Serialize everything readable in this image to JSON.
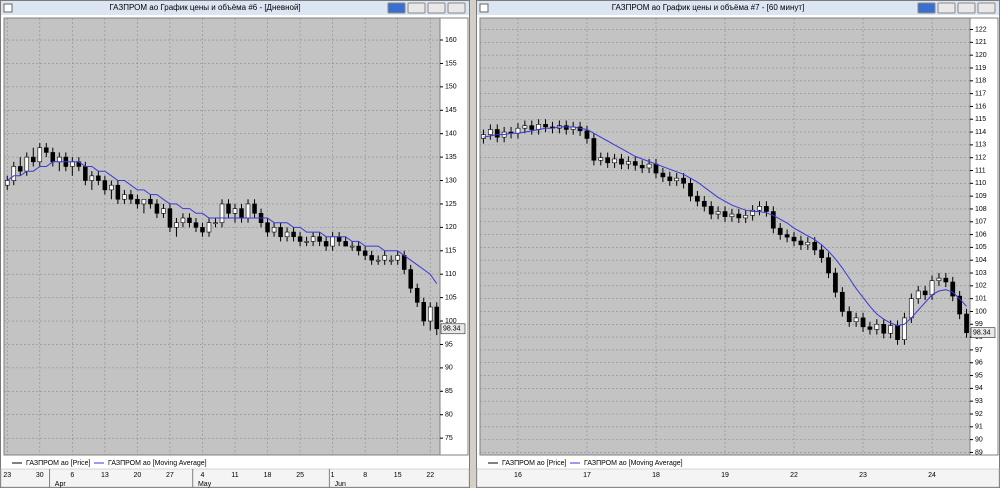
{
  "chart_data": [
    {
      "type": "candlestick",
      "title": "ГАЗПРОМ ао График цены и объёма #6 - [Дневной]",
      "categories": [
        "23",
        null,
        null,
        null,
        null,
        "30",
        null,
        null,
        null,
        null,
        "6",
        null,
        null,
        null,
        null,
        "13",
        null,
        null,
        null,
        null,
        "20",
        null,
        null,
        null,
        null,
        "27",
        null,
        null,
        null,
        null,
        "4",
        null,
        null,
        null,
        null,
        "11",
        null,
        null,
        null,
        null,
        "18",
        null,
        null,
        null,
        null,
        "25",
        null,
        null,
        null,
        null,
        "1",
        null,
        null,
        null,
        null,
        "8",
        null,
        null,
        null,
        null,
        "15",
        null,
        null,
        null,
        null,
        "22",
        null
      ],
      "months": [
        null,
        null,
        null,
        null,
        null,
        null,
        null,
        "Apr",
        null,
        null,
        null,
        null,
        null,
        null,
        null,
        null,
        null,
        null,
        null,
        null,
        null,
        null,
        null,
        null,
        null,
        null,
        null,
        null,
        null,
        "May",
        null,
        null,
        null,
        null,
        null,
        null,
        null,
        null,
        null,
        null,
        null,
        null,
        null,
        null,
        null,
        null,
        null,
        null,
        null,
        null,
        "Jun",
        null,
        null,
        null,
        null,
        null,
        null,
        null,
        null,
        null,
        null,
        null,
        null,
        null,
        null,
        null,
        null
      ],
      "series": [
        {
          "name": "ГАЗПРОМ ао [Price]",
          "color": "#000000",
          "open": [
            129,
            130,
            133,
            132,
            135,
            134,
            137,
            136,
            134,
            135,
            133,
            134,
            133,
            130,
            131,
            130,
            128,
            129,
            126,
            127,
            126,
            125,
            126,
            125,
            123,
            124,
            120,
            121,
            122,
            121,
            120,
            119,
            121,
            121,
            125,
            123,
            124,
            122,
            125,
            123,
            121,
            119,
            120,
            118,
            119,
            118,
            117,
            117,
            118,
            117,
            116,
            118,
            117,
            116,
            116,
            115,
            114,
            113,
            113,
            113,
            113,
            114,
            111,
            107,
            104,
            100,
            103
          ],
          "high": [
            131,
            134,
            135,
            136,
            137,
            138,
            138,
            137,
            136,
            136,
            135,
            135,
            134,
            132,
            132,
            131,
            130,
            130,
            128,
            128,
            127,
            126,
            127,
            126,
            125,
            125,
            122,
            123,
            123,
            122,
            121,
            122,
            122,
            126,
            126,
            125,
            125,
            126,
            126,
            124,
            122,
            121,
            121,
            120,
            120,
            119,
            118,
            119,
            119,
            118,
            119,
            119,
            118,
            117,
            117,
            116,
            115,
            114,
            115,
            114,
            115,
            115,
            112,
            108,
            105,
            104,
            104
          ],
          "low": [
            128,
            129,
            131,
            131,
            133,
            133,
            135,
            133,
            132,
            132,
            131,
            132,
            129,
            128,
            129,
            127,
            126,
            125,
            125,
            125,
            124,
            123,
            124,
            122,
            122,
            119,
            118,
            120,
            120,
            119,
            118,
            118,
            120,
            120,
            122,
            121,
            121,
            121,
            122,
            120,
            118,
            118,
            117,
            117,
            117,
            116,
            116,
            116,
            116,
            115,
            115,
            116,
            116,
            115,
            114,
            113,
            112,
            112,
            112,
            112,
            112,
            110,
            106,
            103,
            99,
            98,
            97
          ],
          "close": [
            130,
            133,
            132,
            135,
            134,
            137,
            136,
            134,
            135,
            133,
            134,
            133,
            130,
            131,
            130,
            128,
            129,
            126,
            127,
            126,
            125,
            126,
            125,
            123,
            124,
            120,
            121,
            122,
            121,
            120,
            119,
            121,
            121,
            125,
            123,
            124,
            122,
            125,
            123,
            121,
            119,
            120,
            118,
            119,
            118,
            117,
            117,
            118,
            117,
            116,
            118,
            117,
            116,
            116,
            115,
            114,
            113,
            113,
            114,
            113,
            114,
            111,
            107,
            104,
            100,
            103,
            98.34
          ]
        },
        {
          "name": "ГАЗПРОМ ао [Moving Average]",
          "color": "#3a3ad8",
          "values": [
            130,
            131,
            131,
            132,
            132,
            133,
            133,
            134,
            134,
            134,
            134,
            134,
            133,
            133,
            132,
            132,
            131,
            130,
            130,
            129,
            128,
            128,
            127,
            127,
            126,
            125,
            125,
            124,
            124,
            123,
            123,
            122,
            122,
            122,
            122,
            122,
            122,
            122,
            122,
            122,
            122,
            121,
            121,
            121,
            120,
            120,
            119,
            119,
            119,
            118,
            118,
            118,
            118,
            117,
            117,
            116,
            116,
            116,
            115,
            115,
            115,
            114,
            113,
            112,
            111,
            110,
            108
          ]
        }
      ],
      "ylim": [
        71.4,
        164.7
      ],
      "yticks": [
        75,
        80,
        85,
        90,
        95,
        100,
        105,
        110,
        115,
        120,
        125,
        130,
        135,
        140,
        145,
        150,
        155,
        160
      ],
      "grid": true
    },
    {
      "type": "candlestick",
      "title": "ГАЗПРОМ ао График цены и объёма #7 - [60 минут]",
      "categories": [
        null,
        null,
        null,
        null,
        null,
        "16",
        null,
        null,
        null,
        null,
        null,
        null,
        null,
        null,
        null,
        "17",
        null,
        null,
        null,
        null,
        null,
        null,
        null,
        null,
        null,
        "18",
        null,
        null,
        null,
        null,
        null,
        null,
        null,
        null,
        null,
        "19",
        null,
        null,
        null,
        null,
        null,
        null,
        null,
        null,
        null,
        "22",
        null,
        null,
        null,
        null,
        null,
        null,
        null,
        null,
        null,
        "23",
        null,
        null,
        null,
        null,
        null,
        null,
        null,
        null,
        null,
        "24",
        null,
        null,
        null,
        null,
        null
      ],
      "series": [
        {
          "name": "ГАЗПРОМ ао [Price]",
          "color": "#000000",
          "open": [
            113.5,
            113.8,
            114.2,
            113.6,
            114,
            113.9,
            114.3,
            114.5,
            114.2,
            114.6,
            114.4,
            114.3,
            114.5,
            114.2,
            114.4,
            114.1,
            113.5,
            111.8,
            112,
            111.6,
            111.9,
            111.5,
            111.7,
            111.4,
            111.2,
            111.5,
            110.8,
            110.5,
            110.2,
            110.4,
            110,
            109,
            108.6,
            108.2,
            107.6,
            107.8,
            107.4,
            107.6,
            107.3,
            107.5,
            107.9,
            108.2,
            107.8,
            106.5,
            106,
            105.8,
            105.5,
            105.2,
            105.4,
            104.8,
            104.2,
            103,
            101.5,
            100,
            99.2,
            99.5,
            98.8,
            98.6,
            99,
            98.3,
            98.9,
            97.8,
            99.5,
            101,
            101.6,
            101.3,
            102.4,
            102.6,
            102.3,
            101.2,
            99.8
          ],
          "high": [
            114.2,
            114.6,
            114.6,
            114.4,
            114.4,
            114.7,
            114.9,
            114.9,
            115,
            115,
            114.8,
            114.9,
            114.9,
            114.8,
            114.8,
            114.5,
            113.9,
            112.4,
            112.4,
            112.3,
            112.3,
            112.1,
            112.1,
            111.8,
            111.9,
            111.9,
            111.2,
            110.9,
            110.8,
            110.8,
            110.4,
            109.4,
            109,
            108.6,
            108.2,
            108.2,
            108,
            108,
            107.9,
            108.3,
            108.6,
            108.6,
            108.2,
            106.9,
            106.4,
            106.2,
            105.9,
            105.8,
            105.8,
            105.2,
            104.6,
            103.4,
            101.9,
            100.4,
            99.9,
            99.9,
            99.2,
            99.4,
            99.4,
            99.3,
            99.3,
            99.9,
            101.4,
            102,
            102,
            102.8,
            103,
            103,
            102.7,
            101.6,
            100.2
          ],
          "low": [
            113.1,
            113.4,
            113.2,
            113.2,
            113.5,
            113.5,
            113.9,
            113.8,
            113.8,
            114,
            113.9,
            113.9,
            113.8,
            113.8,
            113.7,
            113.1,
            111.4,
            111.4,
            111.2,
            111.2,
            111.1,
            111.1,
            111,
            110.8,
            110.8,
            110.4,
            110.1,
            109.8,
            109.8,
            109.6,
            108.6,
            108.2,
            107.8,
            107.2,
            107.2,
            107,
            107,
            106.9,
            106.9,
            107.1,
            107.5,
            107.4,
            106.1,
            105.6,
            105.4,
            105.1,
            104.8,
            104.8,
            104.4,
            103.8,
            102.6,
            101.1,
            99.6,
            98.8,
            98.8,
            98.4,
            98.2,
            98.2,
            97.9,
            97.9,
            97.4,
            97.4,
            99.1,
            100.6,
            100.9,
            100.9,
            102,
            101.9,
            100.8,
            99.4,
            97.94
          ],
          "close": [
            113.8,
            114.2,
            113.6,
            114,
            113.9,
            114.3,
            114.5,
            114.2,
            114.6,
            114.4,
            114.3,
            114.5,
            114.2,
            114.4,
            114.1,
            113.5,
            111.8,
            112,
            111.6,
            111.9,
            111.5,
            111.7,
            111.4,
            111.2,
            111.5,
            110.8,
            110.5,
            110.2,
            110.4,
            110,
            109,
            108.6,
            108.2,
            107.6,
            107.8,
            107.4,
            107.6,
            107.3,
            107.5,
            107.9,
            108.2,
            107.8,
            106.5,
            106,
            105.8,
            105.5,
            105.2,
            105.4,
            104.8,
            104.2,
            103,
            101.5,
            100,
            99.2,
            99.5,
            98.8,
            98.6,
            99,
            98.3,
            98.9,
            97.8,
            99.5,
            101,
            101.6,
            101.3,
            102.4,
            102.6,
            102.3,
            101.2,
            99.8,
            98.34
          ]
        },
        {
          "name": "ГАЗПРОМ ао [Moving Average]",
          "color": "#3a3ad8",
          "values": [
            113.6,
            113.7,
            113.8,
            113.8,
            113.9,
            113.9,
            114,
            114.1,
            114.2,
            114.3,
            114.3,
            114.4,
            114.4,
            114.4,
            114.3,
            114.2,
            113.9,
            113.6,
            113.3,
            113,
            112.7,
            112.4,
            112.1,
            111.9,
            111.7,
            111.5,
            111.3,
            111.1,
            110.9,
            110.7,
            110.4,
            110.1,
            109.7,
            109.3,
            108.9,
            108.6,
            108.3,
            108.1,
            107.9,
            107.8,
            107.8,
            107.7,
            107.5,
            107.2,
            106.9,
            106.5,
            106.2,
            105.9,
            105.6,
            105.2,
            104.7,
            104.1,
            103.4,
            102.6,
            101.8,
            101.1,
            100.4,
            99.8,
            99.4,
            99.1,
            98.9,
            99,
            99.5,
            100.1,
            100.7,
            101.3,
            101.6,
            101.7,
            101.5,
            101,
            100.4
          ]
        }
      ],
      "ylim": [
        88.8,
        122.9
      ],
      "yticks": [
        89,
        90,
        91,
        92,
        93,
        94,
        95,
        96,
        97,
        98,
        99,
        100,
        101,
        102,
        103,
        104,
        105,
        106,
        107,
        108,
        109,
        110,
        111,
        112,
        113,
        114,
        115,
        116,
        117,
        118,
        119,
        120,
        121,
        122
      ],
      "grid": true
    }
  ]
}
